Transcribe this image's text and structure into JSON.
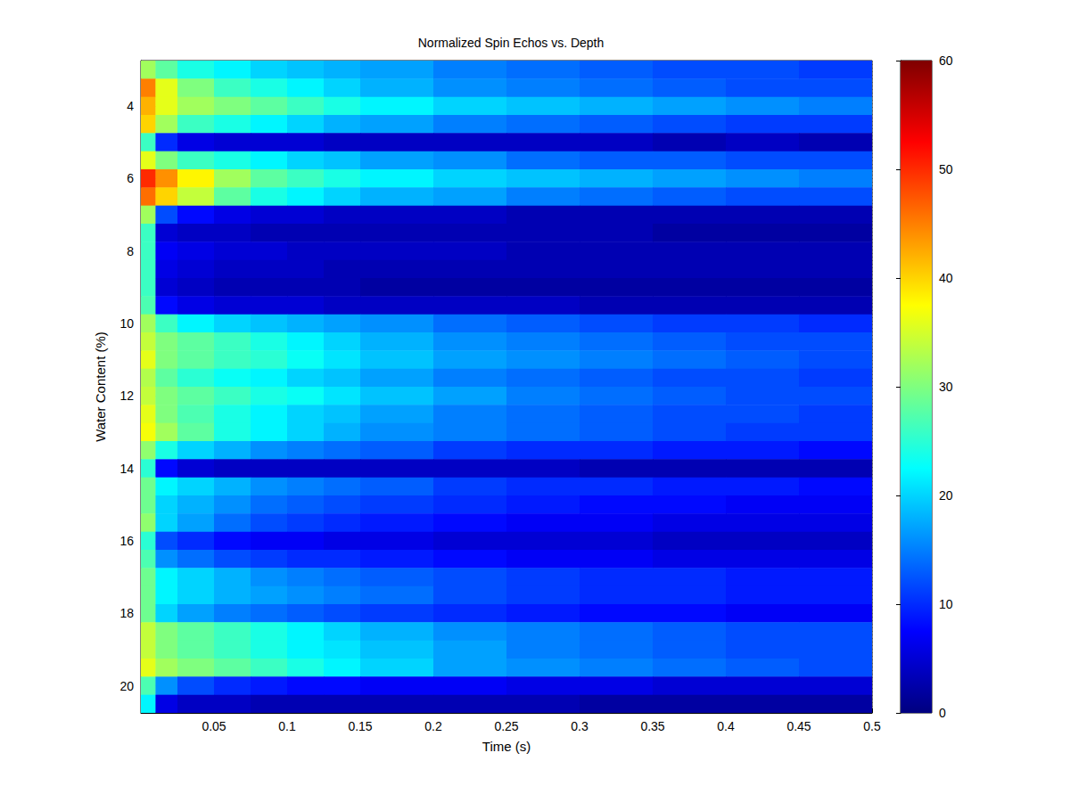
{
  "chart_data": {
    "type": "heatmap",
    "title": "Normalized Spin Echos vs. Depth",
    "x_label": "Time (s)",
    "y_label": "Water Content (%)",
    "xlim": [
      0,
      0.5
    ],
    "xticks": [
      0.05,
      0.1,
      0.15,
      0.2,
      0.25,
      0.3,
      0.35,
      0.4,
      0.45,
      0.5
    ],
    "ylim": [
      2.75,
      20.75
    ],
    "yticks": [
      4,
      6,
      8,
      10,
      12,
      14,
      16,
      18,
      20
    ],
    "grid": true,
    "x_edges": [
      0,
      0.01,
      0.025,
      0.05,
      0.075,
      0.1,
      0.125,
      0.15,
      0.2,
      0.25,
      0.3,
      0.35,
      0.4,
      0.45,
      0.5
    ],
    "y_edges": [
      2.75,
      3.25,
      3.75,
      4.25,
      4.75,
      5.25,
      5.75,
      6.25,
      6.75,
      7.25,
      7.75,
      8.25,
      8.75,
      9.25,
      9.75,
      10.25,
      10.75,
      11.25,
      11.75,
      12.25,
      12.75,
      13.25,
      13.75,
      14.25,
      14.75,
      15.25,
      15.75,
      16.25,
      16.75,
      17.25,
      17.75,
      18.25,
      18.75,
      19.25,
      19.75,
      20.25,
      20.75
    ],
    "cells": [
      [
        32,
        28,
        24,
        22,
        20,
        19,
        18,
        17,
        15,
        14,
        13,
        12,
        12,
        11
      ],
      [
        45,
        36,
        30,
        26,
        24,
        22,
        20,
        18,
        16,
        15,
        14,
        13,
        12,
        12
      ],
      [
        42,
        36,
        32,
        30,
        28,
        26,
        24,
        22,
        20,
        19,
        18,
        17,
        16,
        15
      ],
      [
        40,
        32,
        26,
        24,
        22,
        20,
        18,
        17,
        15,
        14,
        13,
        12,
        11,
        11
      ],
      [
        26,
        10,
        6,
        5,
        5,
        5,
        4,
        4,
        4,
        4,
        4,
        3,
        4,
        3
      ],
      [
        36,
        30,
        26,
        24,
        22,
        20,
        19,
        17,
        16,
        14,
        13,
        13,
        12,
        12
      ],
      [
        50,
        44,
        38,
        32,
        28,
        26,
        24,
        22,
        20,
        19,
        18,
        17,
        16,
        15
      ],
      [
        46,
        40,
        34,
        28,
        24,
        22,
        20,
        18,
        17,
        15,
        14,
        13,
        12,
        12
      ],
      [
        32,
        12,
        8,
        6,
        5,
        5,
        4,
        4,
        4,
        3,
        3,
        3,
        3,
        3
      ],
      [
        26,
        5,
        4,
        4,
        3,
        3,
        3,
        3,
        3,
        3,
        3,
        2,
        2,
        2
      ],
      [
        26,
        7,
        6,
        5,
        5,
        4,
        4,
        4,
        4,
        3,
        3,
        3,
        3,
        3
      ],
      [
        26,
        6,
        5,
        4,
        4,
        4,
        3,
        3,
        3,
        3,
        3,
        3,
        3,
        3
      ],
      [
        26,
        5,
        4,
        3,
        3,
        3,
        3,
        2,
        2,
        2,
        2,
        2,
        2,
        2
      ],
      [
        27,
        8,
        6,
        5,
        5,
        5,
        4,
        4,
        4,
        4,
        3,
        3,
        3,
        3
      ],
      [
        32,
        26,
        22,
        20,
        19,
        18,
        17,
        16,
        14,
        13,
        12,
        11,
        11,
        10
      ],
      [
        34,
        30,
        28,
        26,
        24,
        22,
        20,
        18,
        16,
        15,
        14,
        13,
        12,
        12
      ],
      [
        36,
        30,
        28,
        26,
        25,
        23,
        21,
        19,
        17,
        16,
        15,
        14,
        13,
        12
      ],
      [
        33,
        28,
        25,
        23,
        22,
        20,
        19,
        17,
        15,
        14,
        13,
        12,
        12,
        11
      ],
      [
        34,
        30,
        28,
        26,
        24,
        23,
        21,
        19,
        17,
        15,
        14,
        13,
        12,
        12
      ],
      [
        36,
        30,
        27,
        24,
        22,
        20,
        19,
        17,
        15,
        14,
        13,
        12,
        12,
        11
      ],
      [
        37,
        32,
        28,
        24,
        22,
        20,
        18,
        16,
        15,
        14,
        13,
        12,
        11,
        11
      ],
      [
        31,
        24,
        20,
        18,
        16,
        15,
        14,
        13,
        11,
        10,
        10,
        9,
        9,
        8
      ],
      [
        25,
        8,
        5,
        4,
        4,
        4,
        4,
        4,
        4,
        4,
        3,
        3,
        3,
        3
      ],
      [
        29,
        22,
        20,
        18,
        16,
        15,
        14,
        13,
        11,
        10,
        10,
        9,
        9,
        8
      ],
      [
        29,
        20,
        18,
        16,
        14,
        13,
        12,
        11,
        10,
        9,
        8,
        8,
        7,
        7
      ],
      [
        31,
        20,
        17,
        14,
        12,
        11,
        10,
        9,
        8,
        7,
        7,
        6,
        6,
        6
      ],
      [
        25,
        12,
        10,
        8,
        7,
        7,
        6,
        6,
        5,
        5,
        5,
        4,
        4,
        4
      ],
      [
        27,
        16,
        14,
        12,
        11,
        10,
        10,
        9,
        8,
        7,
        7,
        6,
        6,
        6
      ],
      [
        29,
        22,
        20,
        18,
        16,
        15,
        14,
        13,
        12,
        11,
        10,
        10,
        9,
        9
      ],
      [
        29,
        22,
        20,
        18,
        17,
        16,
        15,
        14,
        12,
        11,
        10,
        10,
        9,
        9
      ],
      [
        29,
        20,
        17,
        15,
        14,
        13,
        12,
        11,
        10,
        9,
        8,
        8,
        7,
        7
      ],
      [
        34,
        30,
        28,
        26,
        24,
        22,
        20,
        18,
        16,
        15,
        14,
        13,
        12,
        12
      ],
      [
        34,
        30,
        28,
        26,
        24,
        22,
        21,
        19,
        17,
        15,
        14,
        13,
        12,
        12
      ],
      [
        36,
        32,
        30,
        28,
        26,
        24,
        22,
        20,
        17,
        16,
        15,
        14,
        13,
        12
      ],
      [
        27,
        16,
        12,
        10,
        9,
        8,
        8,
        7,
        7,
        6,
        6,
        5,
        5,
        5
      ],
      [
        22,
        6,
        4,
        4,
        3,
        3,
        3,
        3,
        3,
        3,
        2,
        2,
        2,
        2
      ]
    ],
    "clim": [
      0,
      60
    ],
    "cticks": [
      0,
      10,
      20,
      30,
      40,
      50,
      60
    ]
  }
}
